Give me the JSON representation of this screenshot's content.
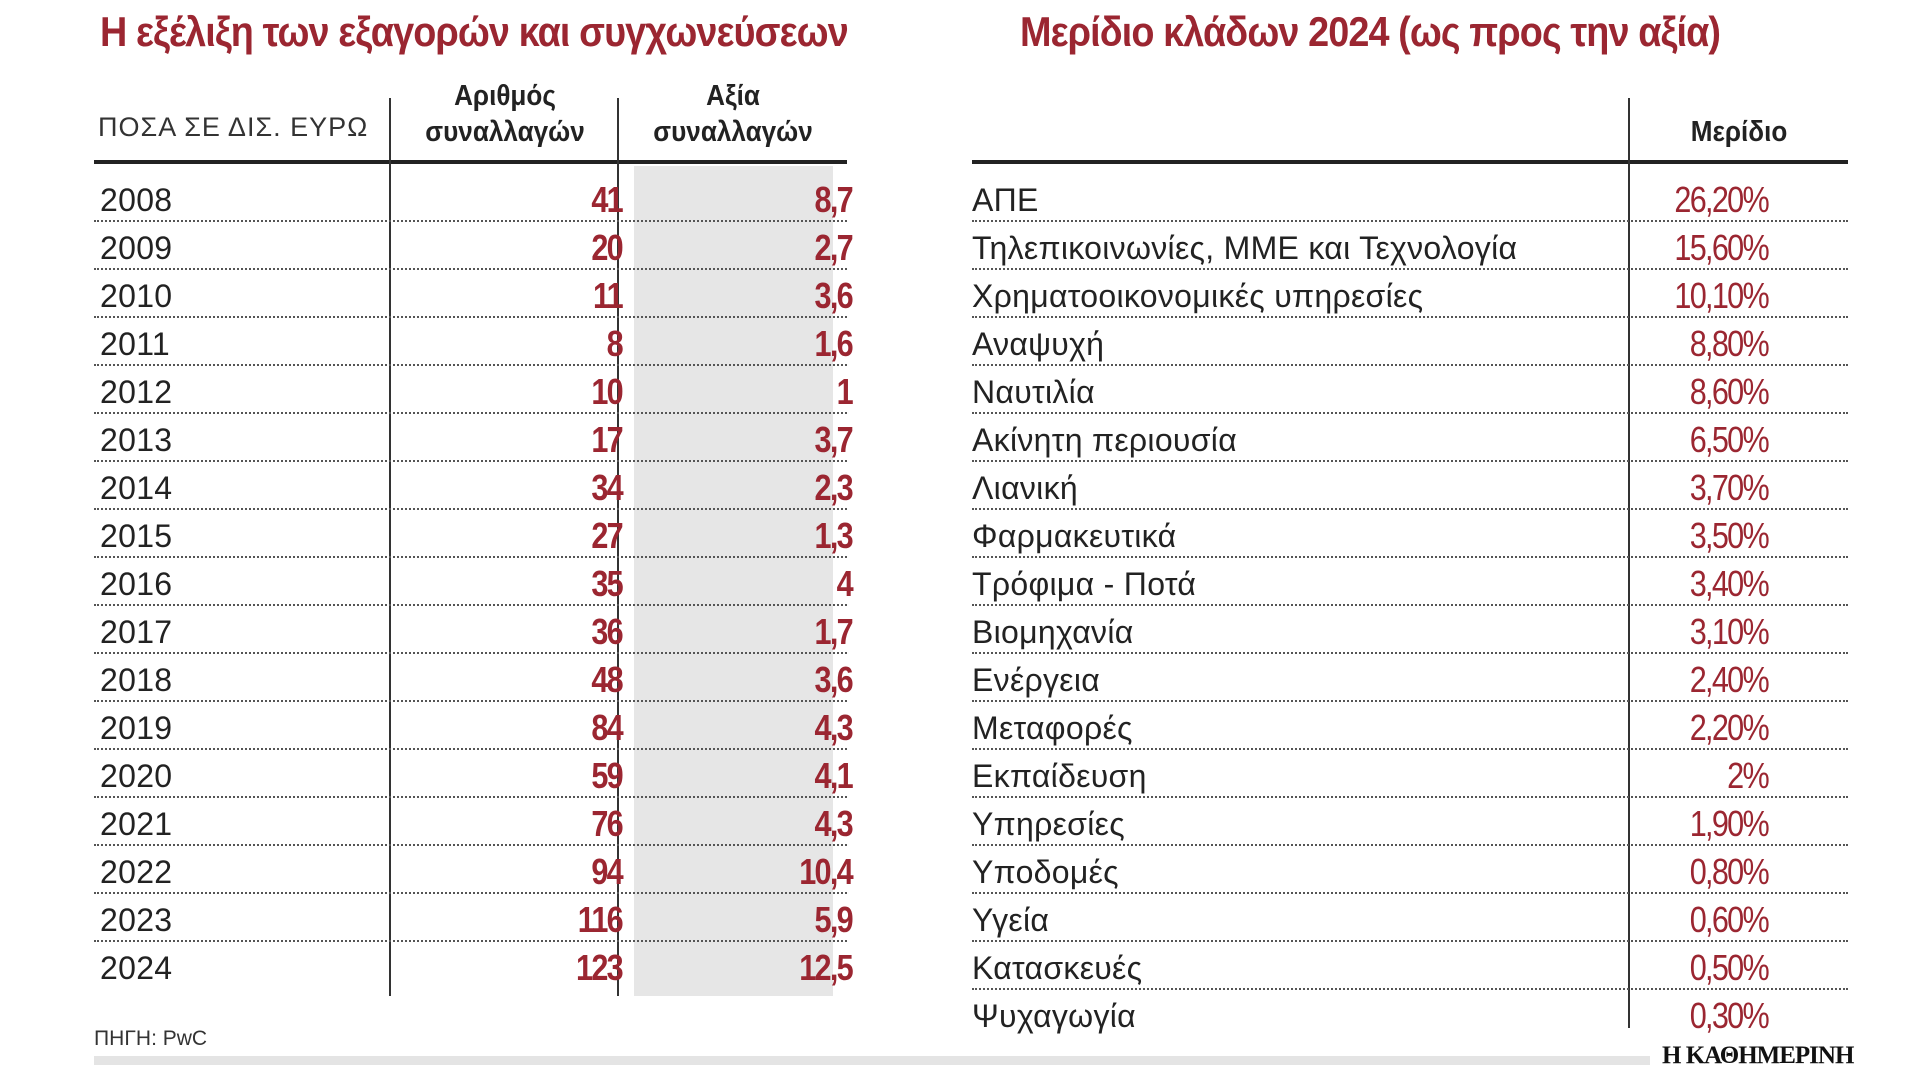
{
  "colors": {
    "accent": "#9b2631",
    "gray_column": "#e6e6e6"
  },
  "left": {
    "title": "Η εξέλιξη των εξαγορών και συγχωνεύσεων",
    "unit_label": "ΠΟΣΑ ΣΕ ΔΙΣ. ΕΥΡΩ",
    "col_count": [
      "Αριθμός",
      "συναλλαγών"
    ],
    "col_value": [
      "Αξία",
      "συναλλαγών"
    ],
    "rows": [
      {
        "year": "2008",
        "count": "41",
        "value": "8,7"
      },
      {
        "year": "2009",
        "count": "20",
        "value": "2,7"
      },
      {
        "year": "2010",
        "count": "11",
        "value": "3,6"
      },
      {
        "year": "2011",
        "count": "8",
        "value": "1,6"
      },
      {
        "year": "2012",
        "count": "10",
        "value": "1"
      },
      {
        "year": "2013",
        "count": "17",
        "value": "3,7"
      },
      {
        "year": "2014",
        "count": "34",
        "value": "2,3"
      },
      {
        "year": "2015",
        "count": "27",
        "value": "1,3"
      },
      {
        "year": "2016",
        "count": "35",
        "value": "4"
      },
      {
        "year": "2017",
        "count": "36",
        "value": "1,7"
      },
      {
        "year": "2018",
        "count": "48",
        "value": "3,6"
      },
      {
        "year": "2019",
        "count": "84",
        "value": "4,3"
      },
      {
        "year": "2020",
        "count": "59",
        "value": "4,1"
      },
      {
        "year": "2021",
        "count": "76",
        "value": "4,3"
      },
      {
        "year": "2022",
        "count": "94",
        "value": "10,4"
      },
      {
        "year": "2023",
        "count": "116",
        "value": "5,9"
      },
      {
        "year": "2024",
        "count": "123",
        "value": "12,5"
      }
    ]
  },
  "right": {
    "title": "Μερίδιο κλάδων 2024 (ως προς την αξία)",
    "col_share": "Μερίδιο",
    "rows": [
      {
        "sector": "ΑΠΕ",
        "share": "26,20%"
      },
      {
        "sector": "Τηλεπικοινωνίες, ΜΜΕ και Τεχνολογία",
        "share": "15,60%"
      },
      {
        "sector": "Χρηματοοικονομικές υπηρεσίες",
        "share": "10,10%"
      },
      {
        "sector": "Αναψυχή",
        "share": "8,80%"
      },
      {
        "sector": "Ναυτιλία",
        "share": "8,60%"
      },
      {
        "sector": "Ακίνητη περιουσία",
        "share": "6,50%"
      },
      {
        "sector": "Λιανική",
        "share": "3,70%"
      },
      {
        "sector": "Φαρμακευτικά",
        "share": "3,50%"
      },
      {
        "sector": "Τρόφιμα - Ποτά",
        "share": "3,40%"
      },
      {
        "sector": "Βιομηχανία",
        "share": "3,10%"
      },
      {
        "sector": "Ενέργεια",
        "share": "2,40%"
      },
      {
        "sector": "Μεταφορές",
        "share": "2,20%"
      },
      {
        "sector": "Εκπαίδευση",
        "share": "2%"
      },
      {
        "sector": "Υπηρεσίες",
        "share": "1,90%"
      },
      {
        "sector": "Υποδομές",
        "share": "0,80%"
      },
      {
        "sector": "Υγεία",
        "share": "0,60%"
      },
      {
        "sector": "Κατασκευές",
        "share": "0,50%"
      },
      {
        "sector": "Ψυχαγωγία",
        "share": "0,30%"
      }
    ]
  },
  "footer": {
    "source": "ΠΗΓΗ: PwC",
    "logo": "Η ΚΑΘΗΜΕΡΙΝΗ"
  }
}
